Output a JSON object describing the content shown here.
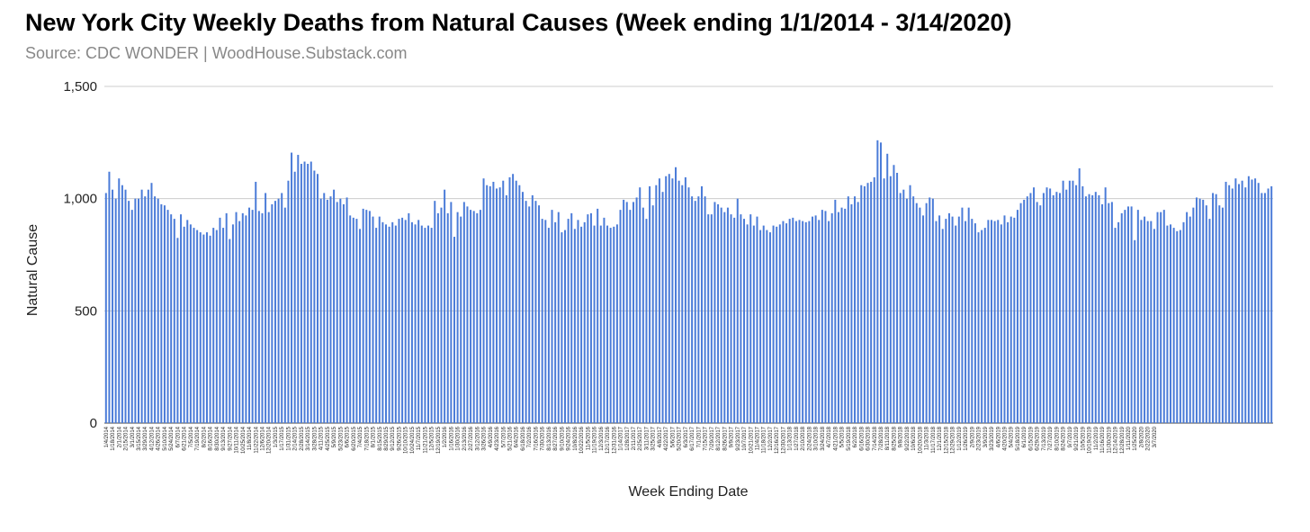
{
  "title": "New York City Weekly Deaths from Natural Causes (Week ending 1/1/2014 - 3/14/2020)",
  "subtitle": "Source: CDC WONDER | WoodHouse.Substack.com",
  "chart_data": {
    "type": "bar",
    "xlabel": "Week Ending Date",
    "ylabel": "Natural Cause",
    "ylim": [
      0,
      1500
    ],
    "yticks": [
      0,
      500,
      1000,
      1500
    ],
    "ytick_labels": [
      "0",
      "500",
      "1,000",
      "1,500"
    ],
    "grid": true,
    "bar_color": "#4a7bd8",
    "xtick_labels": [
      "1/4/2014",
      "1/18/2014",
      "2/1/2014",
      "2/15/2014",
      "3/1/2014",
      "3/15/2014",
      "3/29/2014",
      "4/12/2014",
      "4/26/2014",
      "5/10/2014",
      "5/24/2014",
      "6/7/2014",
      "6/21/2014",
      "7/5/2014",
      "7/19/2014",
      "8/2/2014",
      "8/16/2014",
      "8/30/2014",
      "9/13/2014",
      "9/27/2014",
      "10/11/2014",
      "10/25/2014",
      "11/8/2014",
      "11/22/2014",
      "12/6/2014",
      "12/20/2014",
      "1/3/2015",
      "1/17/2015",
      "1/31/2015",
      "2/14/2015",
      "2/28/2015",
      "3/14/2015",
      "3/28/2015",
      "4/11/2015",
      "4/25/2015",
      "5/9/2015",
      "5/23/2015",
      "6/6/2015",
      "6/20/2015",
      "7/4/2015",
      "7/18/2015",
      "8/1/2015",
      "8/15/2015",
      "8/29/2015",
      "9/12/2015",
      "9/26/2015",
      "10/10/2015",
      "10/24/2015",
      "11/7/2015",
      "11/21/2015",
      "12/5/2015",
      "12/19/2015",
      "1/2/2016",
      "1/16/2016",
      "1/30/2016",
      "2/13/2016",
      "2/27/2016",
      "3/12/2016",
      "3/26/2016",
      "4/9/2016",
      "4/23/2016",
      "5/7/2016",
      "5/21/2016",
      "6/4/2016",
      "6/18/2016",
      "7/2/2016",
      "7/16/2016",
      "7/30/2016",
      "8/13/2016",
      "8/27/2016",
      "9/10/2016",
      "9/24/2016",
      "10/8/2016",
      "10/22/2016",
      "11/5/2016",
      "11/19/2016",
      "12/3/2016",
      "12/17/2016",
      "12/31/2016",
      "1/14/2017",
      "1/28/2017",
      "2/11/2017",
      "2/25/2017",
      "3/11/2017",
      "3/25/2017",
      "4/8/2017",
      "4/22/2017",
      "5/6/2017",
      "5/20/2017",
      "6/3/2017",
      "6/17/2017",
      "7/1/2017",
      "7/15/2017",
      "7/29/2017",
      "8/12/2017",
      "8/26/2017",
      "9/9/2017",
      "9/23/2017",
      "10/7/2017",
      "10/21/2017",
      "11/4/2017",
      "11/18/2017",
      "12/2/2017",
      "12/16/2017",
      "12/30/2017",
      "1/13/2018",
      "1/27/2018",
      "2/10/2018",
      "2/24/2018",
      "3/10/2018",
      "3/24/2018",
      "4/7/2018",
      "4/21/2018",
      "5/5/2018",
      "5/19/2018",
      "6/2/2018",
      "6/16/2018",
      "6/30/2018",
      "7/14/2018",
      "7/28/2018",
      "8/11/2018",
      "8/25/2018",
      "9/8/2018",
      "9/22/2018",
      "10/6/2018",
      "10/20/2018",
      "11/3/2018",
      "11/17/2018",
      "12/1/2018",
      "12/15/2018",
      "12/29/2018",
      "1/12/2019",
      "1/26/2019",
      "2/9/2019",
      "2/23/2019",
      "3/9/2019",
      "3/23/2019",
      "4/6/2019",
      "4/20/2019",
      "5/4/2019",
      "5/18/2019",
      "6/1/2019",
      "6/15/2019",
      "6/29/2019",
      "7/13/2019",
      "7/27/2019",
      "8/10/2019",
      "8/24/2019",
      "9/7/2019",
      "9/21/2019",
      "10/5/2019",
      "10/19/2019",
      "11/2/2019",
      "11/16/2019",
      "11/30/2019",
      "12/14/2019",
      "12/28/2019",
      "1/11/2020",
      "1/25/2020",
      "2/8/2020",
      "2/22/2020",
      "3/7/2020"
    ],
    "values": [
      1025,
      1120,
      1040,
      1000,
      1090,
      1060,
      1040,
      990,
      950,
      1000,
      1000,
      1040,
      1010,
      1040,
      1070,
      1010,
      1000,
      975,
      970,
      950,
      930,
      910,
      825,
      930,
      875,
      905,
      885,
      870,
      860,
      850,
      840,
      850,
      835,
      870,
      860,
      915,
      870,
      935,
      820,
      885,
      940,
      900,
      935,
      925,
      960,
      950,
      1075,
      945,
      935,
      1025,
      940,
      975,
      990,
      1000,
      1025,
      960,
      1080,
      1205,
      1120,
      1195,
      1155,
      1165,
      1155,
      1165,
      1125,
      1110,
      1000,
      1025,
      995,
      1010,
      1040,
      985,
      1000,
      975,
      1005,
      925,
      915,
      910,
      865,
      955,
      950,
      945,
      920,
      870,
      920,
      895,
      885,
      875,
      895,
      880,
      910,
      915,
      905,
      935,
      895,
      885,
      905,
      880,
      870,
      880,
      870,
      990,
      935,
      960,
      1040,
      935,
      985,
      830,
      940,
      920,
      985,
      965,
      950,
      945,
      935,
      950,
      1090,
      1060,
      1055,
      1075,
      1045,
      1050,
      1080,
      1015,
      1095,
      1110,
      1080,
      1060,
      1030,
      990,
      965,
      1015,
      990,
      970,
      910,
      905,
      870,
      950,
      895,
      940,
      850,
      860,
      910,
      935,
      865,
      905,
      875,
      895,
      930,
      935,
      880,
      955,
      880,
      915,
      880,
      870,
      875,
      885,
      950,
      995,
      985,
      950,
      985,
      1005,
      1050,
      960,
      910,
      1055,
      970,
      1060,
      1090,
      1030,
      1100,
      1110,
      1090,
      1140,
      1080,
      1060,
      1095,
      1050,
      1010,
      990,
      1010,
      1055,
      1010,
      930,
      930,
      985,
      975,
      960,
      940,
      960,
      930,
      915,
      1000,
      930,
      910,
      885,
      930,
      880,
      920,
      860,
      880,
      860,
      850,
      880,
      875,
      885,
      900,
      890,
      910,
      915,
      900,
      905,
      900,
      895,
      900,
      920,
      925,
      905,
      950,
      945,
      900,
      935,
      995,
      940,
      960,
      955,
      1010,
      975,
      1010,
      985,
      1060,
      1055,
      1070,
      1075,
      1095,
      1260,
      1250,
      1090,
      1200,
      1100,
      1150,
      1115,
      1025,
      1040,
      1000,
      1060,
      1010,
      980,
      960,
      925,
      980,
      1005,
      1000,
      900,
      925,
      865,
      910,
      935,
      920,
      880,
      920,
      960,
      900,
      960,
      910,
      890,
      850,
      860,
      870,
      905,
      905,
      900,
      905,
      885,
      925,
      895,
      920,
      915,
      950,
      980,
      995,
      1010,
      1025,
      1050,
      985,
      970,
      1025,
      1050,
      1045,
      1015,
      1030,
      1025,
      1080,
      1040,
      1080,
      1080,
      1060,
      1135,
      1055,
      1010,
      1020,
      1015,
      1030,
      1015,
      975,
      1050,
      980,
      985,
      870,
      895,
      935,
      950,
      965,
      965,
      815,
      950,
      905,
      920,
      900,
      900,
      865,
      940,
      940,
      950,
      880,
      885,
      870,
      855,
      860,
      895,
      940,
      920,
      960,
      1005,
      1000,
      995,
      970,
      910,
      1025,
      1020,
      970,
      960,
      1075,
      1060,
      1045,
      1090,
      1065,
      1080,
      1050,
      1100,
      1085,
      1090,
      1070,
      1025,
      1025,
      1045,
      1055
    ]
  }
}
